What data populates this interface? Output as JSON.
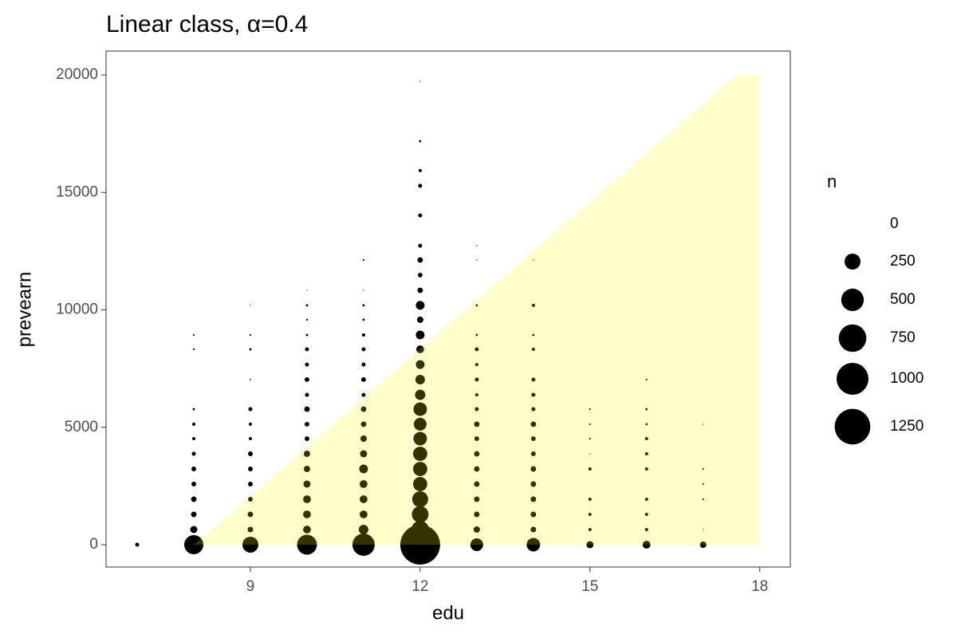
{
  "chart_data": {
    "type": "scatter",
    "title": "Linear class, α=0.4",
    "x_label": "edu",
    "y_label": "prevearn",
    "xlim": [
      6.45,
      18.54
    ],
    "ylim": [
      -951,
      21019
    ],
    "xticks": [
      9,
      12,
      15,
      18
    ],
    "yticks": [
      0,
      5000,
      10000,
      15000,
      20000
    ],
    "grid": false,
    "color": "#000000",
    "groups": [
      {
        "x": 7,
        "values": [
          0
        ],
        "sizes": [
          16
        ]
      },
      {
        "x": 8,
        "values": [
          0,
          645,
          1290,
          1935,
          2580,
          3225,
          3870,
          4515,
          5130,
          5770,
          8320,
          8930
        ],
        "sizes": [
          360,
          50,
          30,
          30,
          22,
          22,
          16,
          10,
          10,
          5,
          3,
          3
        ]
      },
      {
        "x": 9,
        "values": [
          0,
          645,
          1290,
          1935,
          2580,
          3225,
          3870,
          4515,
          5130,
          5770,
          7030,
          8320,
          8930,
          10190
        ],
        "sizes": [
          250,
          30,
          30,
          22,
          22,
          22,
          22,
          10,
          10,
          16,
          2,
          5,
          3,
          1
        ]
      },
      {
        "x": 10,
        "values": [
          0,
          645,
          1290,
          1935,
          2580,
          3225,
          3870,
          4515,
          5130,
          5770,
          6380,
          7030,
          7670,
          8320,
          8930,
          9580,
          10190,
          10830
        ],
        "sizes": [
          390,
          60,
          60,
          60,
          50,
          40,
          40,
          22,
          22,
          30,
          16,
          22,
          16,
          16,
          5,
          3,
          5,
          1
        ]
      },
      {
        "x": 11,
        "values": [
          0,
          645,
          1290,
          1935,
          2580,
          3225,
          3870,
          4515,
          5130,
          5770,
          6380,
          7030,
          7670,
          8320,
          8930,
          9580,
          10190,
          10830,
          12120
        ],
        "sizes": [
          490,
          90,
          60,
          60,
          60,
          75,
          50,
          40,
          30,
          30,
          16,
          22,
          16,
          16,
          10,
          5,
          5,
          1,
          3
        ]
      },
      {
        "x": 12,
        "values": [
          0,
          645,
          1290,
          1935,
          2580,
          3225,
          3870,
          4515,
          5130,
          5770,
          6380,
          7030,
          7670,
          8320,
          8930,
          9580,
          10190,
          10830,
          11480,
          12120,
          12730,
          14020,
          15280,
          15930,
          17180,
          19730
        ],
        "sizes": [
          1560,
          300,
          275,
          250,
          200,
          200,
          200,
          180,
          160,
          180,
          105,
          90,
          75,
          60,
          75,
          40,
          75,
          30,
          22,
          30,
          16,
          16,
          16,
          10,
          5,
          1
        ]
      },
      {
        "x": 13,
        "values": [
          0,
          645,
          1290,
          1935,
          2580,
          3225,
          3870,
          4515,
          5130,
          5770,
          6380,
          7030,
          7670,
          8320,
          8930,
          10190,
          12120,
          12730
        ],
        "sizes": [
          160,
          40,
          30,
          30,
          30,
          30,
          30,
          22,
          30,
          16,
          10,
          16,
          10,
          16,
          5,
          5,
          1,
          1
        ]
      },
      {
        "x": 14,
        "values": [
          0,
          645,
          1290,
          1935,
          2580,
          3225,
          3870,
          4515,
          5130,
          5770,
          6380,
          7030,
          8320,
          8930,
          10190,
          12120
        ],
        "sizes": [
          180,
          30,
          30,
          30,
          30,
          30,
          22,
          22,
          30,
          16,
          16,
          16,
          10,
          5,
          10,
          1
        ]
      },
      {
        "x": 15,
        "values": [
          0,
          645,
          1290,
          1935,
          3225,
          3870,
          4515,
          5130,
          5770
        ],
        "sizes": [
          50,
          10,
          10,
          10,
          10,
          1,
          3,
          3,
          3
        ]
      },
      {
        "x": 16,
        "values": [
          0,
          645,
          1290,
          1935,
          3225,
          3870,
          4515,
          5130,
          5770,
          7030
        ],
        "sizes": [
          60,
          10,
          10,
          10,
          10,
          10,
          10,
          5,
          5,
          3
        ]
      },
      {
        "x": 17,
        "values": [
          0,
          645,
          1935,
          2580,
          3225,
          5130
        ],
        "sizes": [
          40,
          1,
          3,
          3,
          3,
          1
        ]
      }
    ],
    "region": {
      "x": [
        8,
        17.58,
        18,
        18
      ],
      "y": [
        0,
        20000,
        20000,
        0
      ],
      "color": "#ffff00",
      "opacity": 0.2
    },
    "size_legend": {
      "title": "n",
      "values": [
        0,
        250,
        500,
        750,
        1000,
        1250
      ]
    }
  }
}
